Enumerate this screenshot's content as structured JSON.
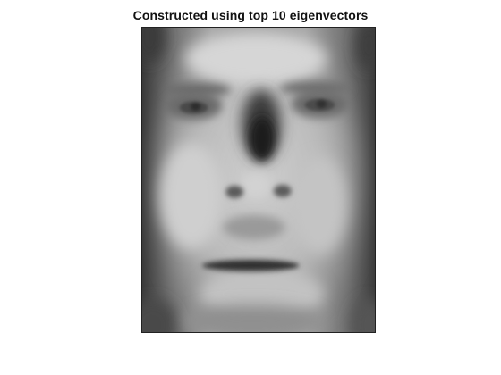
{
  "figure": {
    "title": "Constructed using top 10 eigenvectors",
    "image": {
      "description_icon": "grayscale-face-reconstruction",
      "colormap": "gray"
    }
  }
}
